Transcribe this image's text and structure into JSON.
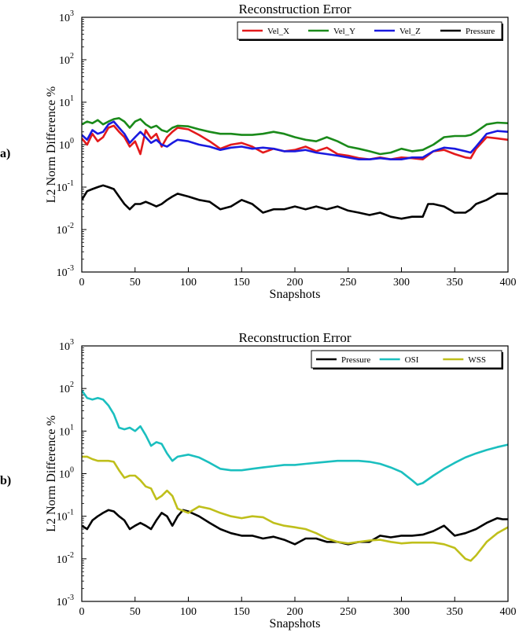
{
  "chart_data": [
    {
      "panel_label": "a)",
      "type": "line",
      "title": "Reconstruction Error",
      "xlabel": "Snapshots",
      "ylabel": "L2 Norm Difference %",
      "yscale": "log",
      "xlim": [
        0,
        400
      ],
      "ylim": [
        0.001,
        1000
      ],
      "xticks": [
        0,
        50,
        100,
        150,
        200,
        250,
        300,
        350,
        400
      ],
      "yticks": [
        {
          "value": 0.001,
          "base": "10",
          "exp": "-3"
        },
        {
          "value": 0.01,
          "base": "10",
          "exp": "-2"
        },
        {
          "value": 0.1,
          "base": "10",
          "exp": "-1"
        },
        {
          "value": 1,
          "base": "10",
          "exp": "0"
        },
        {
          "value": 10,
          "base": "10",
          "exp": "1"
        },
        {
          "value": 100,
          "base": "10",
          "exp": "2"
        },
        {
          "value": 1000,
          "base": "10",
          "exp": "3"
        }
      ],
      "legend_position": "top-right",
      "series": [
        {
          "name": "Vel_X",
          "color": "#e31a1c",
          "x": [
            0,
            5,
            10,
            15,
            20,
            25,
            30,
            35,
            40,
            45,
            50,
            55,
            60,
            65,
            70,
            75,
            80,
            85,
            90,
            100,
            110,
            120,
            130,
            140,
            150,
            160,
            170,
            180,
            190,
            200,
            210,
            220,
            230,
            240,
            250,
            260,
            270,
            280,
            290,
            300,
            310,
            320,
            330,
            340,
            350,
            360,
            365,
            370,
            380,
            390,
            400
          ],
          "y": [
            1.4,
            1.0,
            1.8,
            1.2,
            1.5,
            2.5,
            2.8,
            2.0,
            1.5,
            0.9,
            1.2,
            0.6,
            2.2,
            1.4,
            1.8,
            0.9,
            1.5,
            2.0,
            2.5,
            2.3,
            1.7,
            1.2,
            0.8,
            1.0,
            1.1,
            0.9,
            0.65,
            0.8,
            0.7,
            0.75,
            0.9,
            0.7,
            0.85,
            0.6,
            0.55,
            0.48,
            0.45,
            0.5,
            0.45,
            0.5,
            0.48,
            0.45,
            0.7,
            0.75,
            0.6,
            0.5,
            0.48,
            0.8,
            1.5,
            1.4,
            1.3
          ]
        },
        {
          "name": "Vel_Y",
          "color": "#1a8a1a",
          "x": [
            0,
            5,
            10,
            15,
            20,
            25,
            30,
            35,
            40,
            45,
            50,
            55,
            60,
            65,
            70,
            75,
            80,
            85,
            90,
            100,
            110,
            120,
            130,
            140,
            150,
            160,
            170,
            180,
            190,
            200,
            210,
            220,
            230,
            240,
            250,
            260,
            270,
            280,
            290,
            300,
            310,
            320,
            330,
            340,
            350,
            360,
            365,
            370,
            380,
            390,
            400
          ],
          "y": [
            3.0,
            3.5,
            3.2,
            3.8,
            3.0,
            3.5,
            4.0,
            4.2,
            3.5,
            2.5,
            3.5,
            4.0,
            3.0,
            2.5,
            2.8,
            2.2,
            2.0,
            2.5,
            2.8,
            2.7,
            2.3,
            2.0,
            1.8,
            1.8,
            1.7,
            1.7,
            1.8,
            2.0,
            1.8,
            1.5,
            1.3,
            1.2,
            1.5,
            1.2,
            0.9,
            0.8,
            0.7,
            0.6,
            0.65,
            0.8,
            0.7,
            0.75,
            1.0,
            1.5,
            1.6,
            1.6,
            1.7,
            2.0,
            3.0,
            3.3,
            3.2
          ]
        },
        {
          "name": "Vel_Z",
          "color": "#1a1ae0",
          "x": [
            0,
            5,
            10,
            15,
            20,
            25,
            30,
            35,
            40,
            45,
            50,
            55,
            60,
            65,
            70,
            75,
            80,
            85,
            90,
            100,
            110,
            120,
            130,
            140,
            150,
            160,
            170,
            180,
            190,
            200,
            210,
            220,
            230,
            240,
            250,
            260,
            270,
            280,
            290,
            300,
            310,
            320,
            330,
            340,
            350,
            360,
            365,
            370,
            380,
            390,
            400
          ],
          "y": [
            1.7,
            1.3,
            2.2,
            1.8,
            2.0,
            3.0,
            3.5,
            2.5,
            1.8,
            1.1,
            1.5,
            2.0,
            1.5,
            1.1,
            1.3,
            1.0,
            0.9,
            1.1,
            1.3,
            1.2,
            1.0,
            0.9,
            0.75,
            0.85,
            0.9,
            0.8,
            0.85,
            0.8,
            0.7,
            0.7,
            0.75,
            0.65,
            0.6,
            0.55,
            0.5,
            0.45,
            0.45,
            0.48,
            0.45,
            0.45,
            0.5,
            0.5,
            0.7,
            0.85,
            0.8,
            0.7,
            0.65,
            0.9,
            1.8,
            2.1,
            2.0
          ]
        },
        {
          "name": "Pressure",
          "color": "#000000",
          "x": [
            0,
            5,
            10,
            15,
            20,
            25,
            30,
            35,
            40,
            45,
            50,
            55,
            60,
            65,
            70,
            75,
            80,
            85,
            90,
            100,
            110,
            120,
            130,
            140,
            150,
            160,
            170,
            180,
            190,
            200,
            210,
            220,
            230,
            240,
            250,
            260,
            270,
            280,
            290,
            300,
            310,
            320,
            325,
            330,
            340,
            350,
            360,
            365,
            370,
            380,
            390,
            400
          ],
          "y": [
            0.05,
            0.08,
            0.09,
            0.1,
            0.11,
            0.1,
            0.09,
            0.06,
            0.04,
            0.03,
            0.04,
            0.04,
            0.045,
            0.04,
            0.035,
            0.04,
            0.05,
            0.06,
            0.07,
            0.06,
            0.05,
            0.045,
            0.03,
            0.035,
            0.05,
            0.04,
            0.025,
            0.03,
            0.03,
            0.035,
            0.03,
            0.035,
            0.03,
            0.035,
            0.028,
            0.025,
            0.022,
            0.025,
            0.02,
            0.018,
            0.02,
            0.02,
            0.04,
            0.04,
            0.035,
            0.025,
            0.025,
            0.03,
            0.04,
            0.05,
            0.07,
            0.07
          ]
        }
      ]
    },
    {
      "panel_label": "b)",
      "type": "line",
      "title": "Reconstruction Error",
      "xlabel": "Snapshots",
      "ylabel": "L2 Norm Difference %",
      "yscale": "log",
      "xlim": [
        0,
        400
      ],
      "ylim": [
        0.001,
        1000
      ],
      "xticks": [
        0,
        50,
        100,
        150,
        200,
        250,
        300,
        350,
        400
      ],
      "yticks": [
        {
          "value": 0.001,
          "base": "10",
          "exp": "-3"
        },
        {
          "value": 0.01,
          "base": "10",
          "exp": "-2"
        },
        {
          "value": 0.1,
          "base": "10",
          "exp": "-1"
        },
        {
          "value": 1,
          "base": "10",
          "exp": "0"
        },
        {
          "value": 10,
          "base": "10",
          "exp": "1"
        },
        {
          "value": 100,
          "base": "10",
          "exp": "2"
        },
        {
          "value": 1000,
          "base": "10",
          "exp": "3"
        }
      ],
      "legend_position": "top-right",
      "series": [
        {
          "name": "Pressure",
          "color": "#000000",
          "x": [
            0,
            5,
            10,
            15,
            20,
            25,
            30,
            35,
            40,
            45,
            50,
            55,
            60,
            65,
            70,
            75,
            80,
            85,
            90,
            95,
            100,
            110,
            120,
            130,
            140,
            150,
            160,
            170,
            180,
            190,
            200,
            210,
            220,
            230,
            240,
            250,
            260,
            270,
            280,
            290,
            300,
            310,
            320,
            330,
            340,
            350,
            360,
            370,
            380,
            390,
            395,
            400
          ],
          "y": [
            0.06,
            0.05,
            0.08,
            0.1,
            0.12,
            0.14,
            0.13,
            0.1,
            0.08,
            0.05,
            0.06,
            0.07,
            0.06,
            0.05,
            0.08,
            0.12,
            0.1,
            0.06,
            0.1,
            0.14,
            0.13,
            0.1,
            0.07,
            0.05,
            0.04,
            0.035,
            0.035,
            0.03,
            0.033,
            0.028,
            0.022,
            0.03,
            0.03,
            0.025,
            0.025,
            0.022,
            0.025,
            0.025,
            0.035,
            0.032,
            0.035,
            0.035,
            0.037,
            0.045,
            0.06,
            0.035,
            0.04,
            0.05,
            0.07,
            0.09,
            0.085,
            0.085
          ]
        },
        {
          "name": "OSI",
          "color": "#1bbfbf",
          "x": [
            0,
            5,
            10,
            15,
            20,
            25,
            30,
            35,
            40,
            45,
            50,
            55,
            60,
            65,
            70,
            75,
            80,
            85,
            90,
            100,
            110,
            120,
            130,
            140,
            150,
            160,
            170,
            180,
            190,
            200,
            210,
            220,
            230,
            240,
            250,
            260,
            270,
            280,
            290,
            300,
            310,
            315,
            320,
            330,
            340,
            350,
            360,
            370,
            380,
            390,
            400
          ],
          "y": [
            90,
            60,
            55,
            60,
            55,
            40,
            25,
            12,
            11,
            12,
            10,
            13,
            8,
            4.5,
            5.5,
            5,
            3,
            2,
            2.5,
            2.8,
            2.4,
            1.8,
            1.3,
            1.2,
            1.2,
            1.3,
            1.4,
            1.5,
            1.6,
            1.6,
            1.7,
            1.8,
            1.9,
            2.0,
            2.0,
            2.0,
            1.9,
            1.7,
            1.4,
            1.1,
            0.7,
            0.55,
            0.6,
            0.9,
            1.3,
            1.8,
            2.4,
            3.0,
            3.6,
            4.2,
            4.8
          ]
        },
        {
          "name": "WSS",
          "color": "#bfbf1b",
          "x": [
            0,
            5,
            10,
            15,
            20,
            25,
            30,
            35,
            40,
            45,
            50,
            55,
            60,
            65,
            70,
            75,
            80,
            85,
            90,
            100,
            110,
            120,
            130,
            140,
            150,
            160,
            170,
            180,
            190,
            200,
            210,
            220,
            230,
            240,
            250,
            260,
            270,
            280,
            290,
            300,
            310,
            320,
            330,
            340,
            350,
            360,
            365,
            370,
            380,
            390,
            400
          ],
          "y": [
            2.5,
            2.5,
            2.2,
            2.0,
            2.0,
            2.0,
            1.9,
            1.2,
            0.8,
            0.9,
            0.9,
            0.7,
            0.5,
            0.45,
            0.25,
            0.3,
            0.4,
            0.3,
            0.15,
            0.12,
            0.17,
            0.15,
            0.12,
            0.1,
            0.09,
            0.1,
            0.095,
            0.07,
            0.06,
            0.055,
            0.05,
            0.04,
            0.03,
            0.025,
            0.023,
            0.025,
            0.027,
            0.028,
            0.025,
            0.023,
            0.024,
            0.024,
            0.024,
            0.022,
            0.018,
            0.01,
            0.009,
            0.012,
            0.025,
            0.04,
            0.055
          ]
        }
      ]
    }
  ]
}
